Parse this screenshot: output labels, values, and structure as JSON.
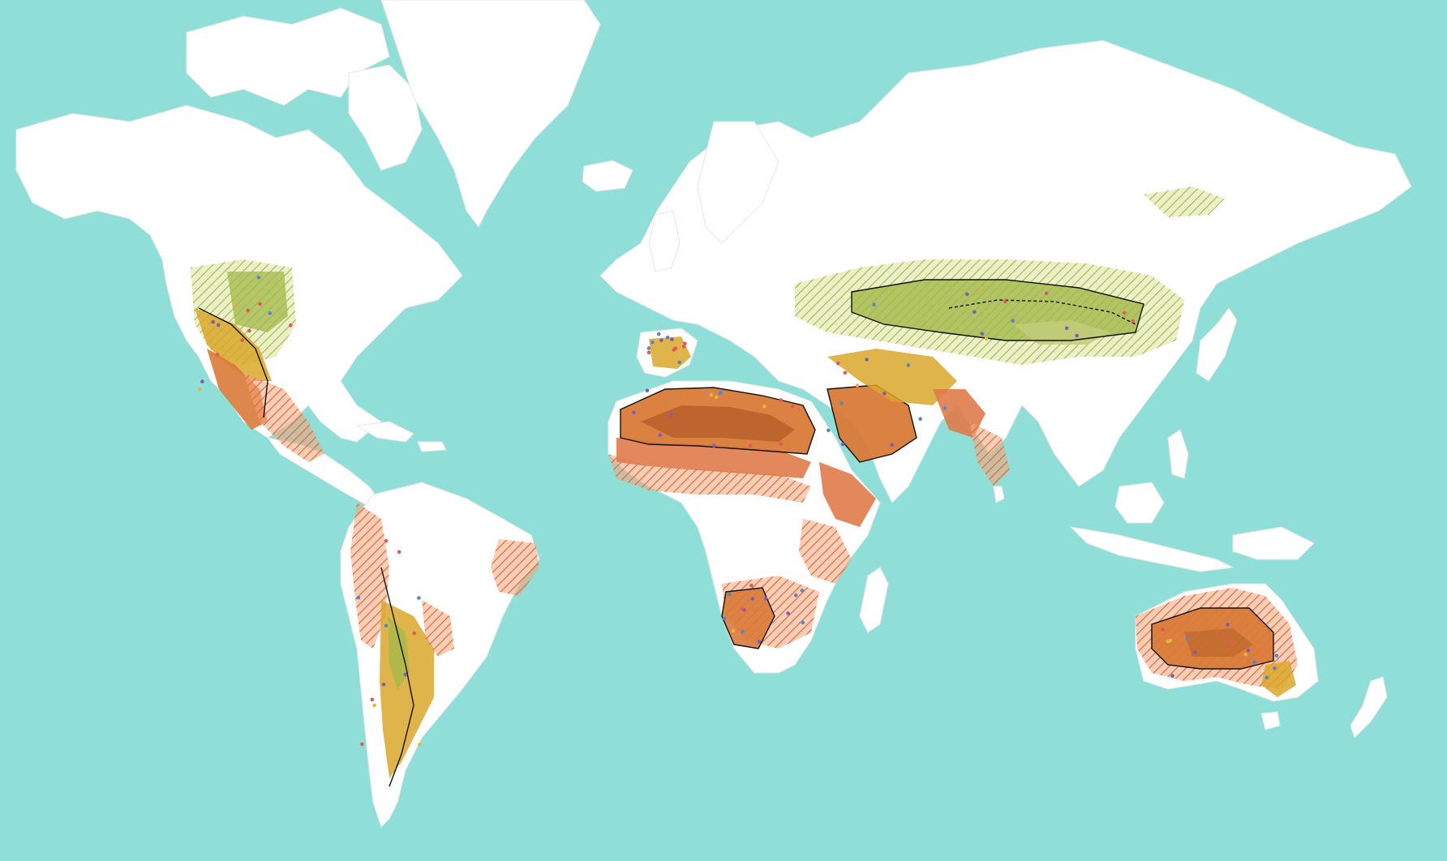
{
  "map": {
    "kind": "world-map",
    "projection": "mercator",
    "colors": {
      "ocean": "#8fdfd8",
      "land": "#ffffff",
      "hot_desert_core": "#b8602c",
      "hot_desert": "#d97a38",
      "hot_semiarid": "#e07a4a",
      "cold_arid": "#d9a72c",
      "cold_semiarid": "#a3b84a",
      "hatch_warm": "#f08b55",
      "hatch_cold": "#c6d46a"
    },
    "point_colors": [
      "#e05a5a",
      "#5b84c4",
      "#7b5fb3",
      "#e6b43a"
    ],
    "labels": []
  }
}
